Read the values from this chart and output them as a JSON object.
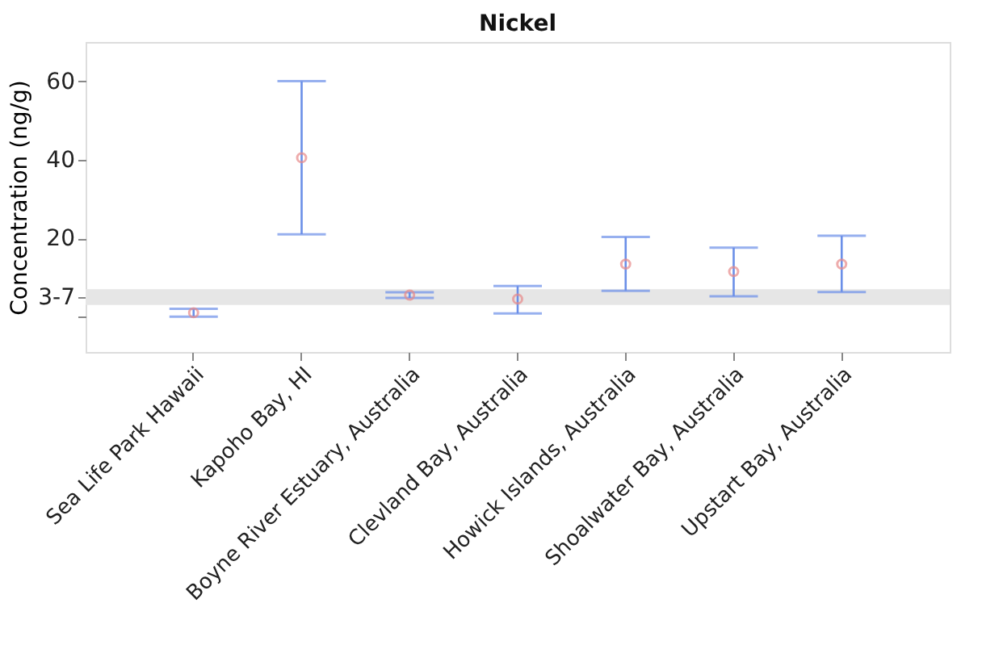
{
  "chart_data": {
    "type": "scatter",
    "title": "Nickel",
    "ylabel": "Concentration (ng/g)",
    "categories": [
      "Sea Life Park Hawaii",
      "Kapoho Bay, HI",
      "Boyne River Estuary, Australia",
      "Clevland Bay, Australia",
      "Howick Islands, Australia",
      "Shoalwater Bay, Australia",
      "Upstart Bay, Australia"
    ],
    "series": [
      {
        "color": "#e88a8a",
        "values": [
          1,
          40.5,
          5.5,
          4.5,
          13.4,
          11.5,
          13.4
        ],
        "errors": [
          [
            0,
            2
          ],
          [
            21,
            60
          ],
          [
            4.8,
            6.2
          ],
          [
            0.8,
            7.8
          ],
          [
            6.6,
            20.3
          ],
          [
            5.2,
            17.6
          ],
          [
            6.3,
            20.6
          ]
        ]
      }
    ],
    "ylim": [
      -9,
      70
    ],
    "yticks": [
      {
        "value": 0,
        "label": null
      },
      {
        "value": 5,
        "label": "3-7"
      },
      20,
      40,
      60
    ],
    "bands": [
      {
        "axis": "y",
        "from": 3,
        "to": 7,
        "color": "#e6e6e6"
      }
    ],
    "marker": "circle",
    "grid": false,
    "legend": false
  }
}
